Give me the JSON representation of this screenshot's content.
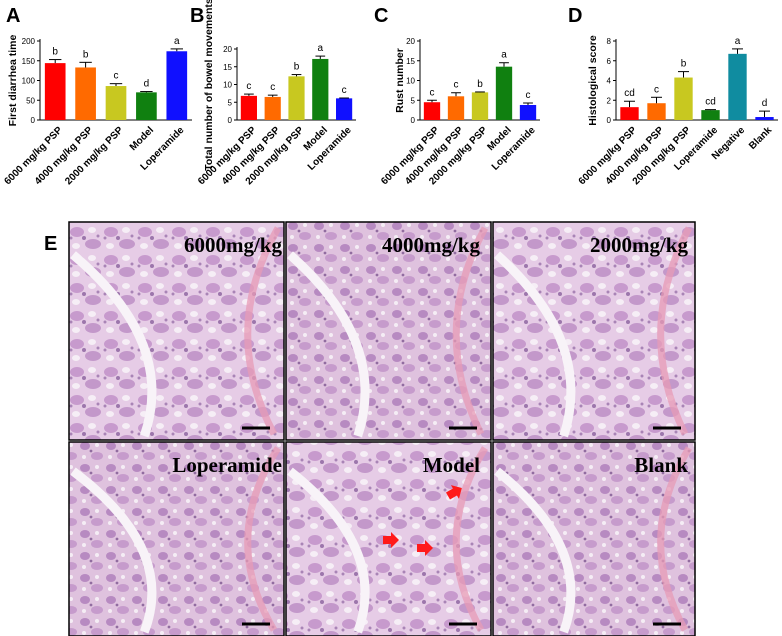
{
  "chart_data": [
    {
      "panel": "A",
      "type": "bar",
      "ylabel": "First diarrhea time",
      "ylim": [
        0,
        200
      ],
      "yticks": [
        0,
        50,
        100,
        150,
        200
      ],
      "categories": [
        "6000 mg/kg PSP",
        "4000 mg/kg PSP",
        "2000 mg/kg PSP",
        "Model",
        "Loperamide"
      ],
      "values": [
        144,
        133,
        86,
        70,
        174
      ],
      "errors": [
        9,
        13,
        6,
        2,
        6
      ],
      "letters": [
        "b",
        "b",
        "c",
        "d",
        "a"
      ],
      "colors": [
        "#ff0000",
        "#ff6a00",
        "#c8c820",
        "#108010",
        "#1010ff"
      ]
    },
    {
      "panel": "B",
      "type": "bar",
      "ylabel": "Total number of bowel movements",
      "ylim": [
        0,
        20
      ],
      "yticks": [
        0,
        5,
        10,
        15,
        20
      ],
      "categories": [
        "6000 mg/kg PSP",
        "4000 mg/kg PSP",
        "2000 mg/kg PSP",
        "Model",
        "Loperamide"
      ],
      "values": [
        6.8,
        6.5,
        12.3,
        17.2,
        6.1
      ],
      "errors": [
        0.5,
        0.5,
        0.5,
        0.8,
        0.1
      ],
      "letters": [
        "c",
        "c",
        "b",
        "a",
        "c"
      ],
      "colors": [
        "#ff0000",
        "#ff6a00",
        "#c8c820",
        "#108010",
        "#1010ff"
      ]
    },
    {
      "panel": "C",
      "type": "bar",
      "ylabel": "Rust number",
      "ylim": [
        0,
        20
      ],
      "yticks": [
        0,
        5,
        10,
        15,
        20
      ],
      "categories": [
        "6000 mg/kg PSP",
        "4000 mg/kg PSP",
        "2000 mg/kg PSP",
        "Model",
        "Loperamide"
      ],
      "values": [
        4.5,
        6.0,
        7.0,
        13.5,
        3.8
      ],
      "errors": [
        0.5,
        0.9,
        0.1,
        1.0,
        0.5
      ],
      "letters": [
        "c",
        "c",
        "b",
        "a",
        "c"
      ],
      "colors": [
        "#ff0000",
        "#ff6a00",
        "#c8c820",
        "#108010",
        "#1010ff"
      ]
    },
    {
      "panel": "D",
      "type": "bar",
      "ylabel": "Histological score",
      "ylim": [
        0,
        8
      ],
      "yticks": [
        0,
        2,
        4,
        6,
        8
      ],
      "categories": [
        "6000 mg/kg PSP",
        "4000 mg/kg PSP",
        "2000 mg/kg PSP",
        "Loperamide",
        "Negative",
        "Blank"
      ],
      "values": [
        1.3,
        1.7,
        4.3,
        1.0,
        6.7,
        0.3
      ],
      "errors": [
        0.6,
        0.6,
        0.6,
        0.05,
        0.5,
        0.6
      ],
      "letters": [
        "cd",
        "c",
        "b",
        "cd",
        "a",
        "d"
      ],
      "colors": [
        "#ff0000",
        "#ff6a00",
        "#c8c820",
        "#108010",
        "#108ca0",
        "#1010ff"
      ]
    }
  ],
  "panel_e": {
    "letter": "E",
    "tiles": [
      "6000mg/kg",
      "4000mg/kg",
      "2000mg/kg",
      "Loperamide",
      "Model",
      "Blank"
    ],
    "arrow_color": "#ff1a1a"
  }
}
